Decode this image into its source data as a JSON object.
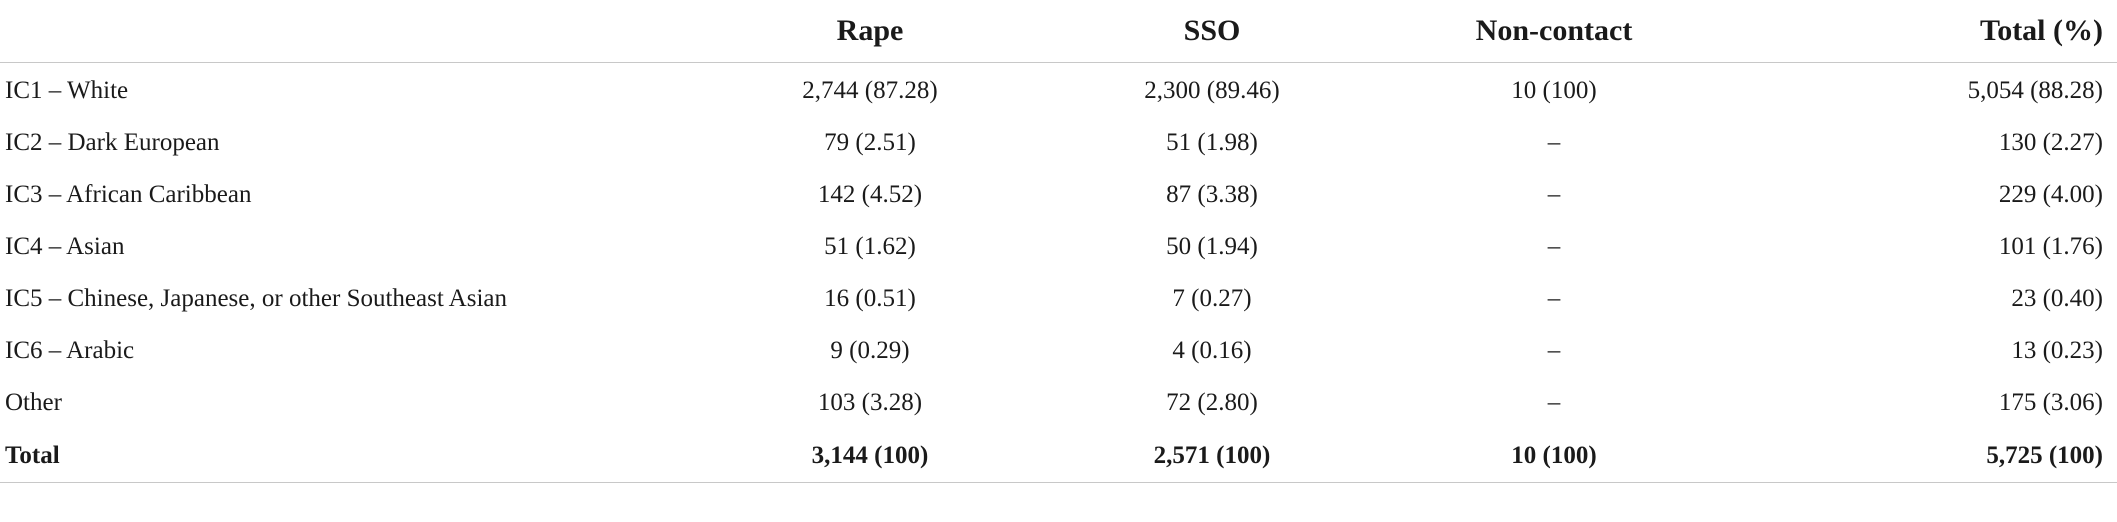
{
  "table": {
    "headers": {
      "label": "",
      "rape": "Rape",
      "sso": "SSO",
      "non_contact": "Non-contact",
      "total": "Total (%)"
    },
    "rows": [
      {
        "label": "IC1 – White",
        "rape": "2,744 (87.28)",
        "sso": "2,300 (89.46)",
        "non_contact": "10 (100)",
        "total": "5,054 (88.28)"
      },
      {
        "label": "IC2 – Dark European",
        "rape": "79 (2.51)",
        "sso": "51 (1.98)",
        "non_contact": "–",
        "total": "130 (2.27)"
      },
      {
        "label": "IC3 – African Caribbean",
        "rape": "142 (4.52)",
        "sso": "87 (3.38)",
        "non_contact": "–",
        "total": "229 (4.00)"
      },
      {
        "label": "IC4 – Asian",
        "rape": "51 (1.62)",
        "sso": "50 (1.94)",
        "non_contact": "–",
        "total": "101 (1.76)"
      },
      {
        "label": "IC5 – Chinese, Japanese, or other Southeast Asian",
        "rape": "16 (0.51)",
        "sso": "7 (0.27)",
        "non_contact": "–",
        "total": "23 (0.40)"
      },
      {
        "label": "IC6 – Arabic",
        "rape": "9 (0.29)",
        "sso": "4 (0.16)",
        "non_contact": "–",
        "total": "13 (0.23)"
      },
      {
        "label": "Other",
        "rape": "103 (3.28)",
        "sso": "72 (2.80)",
        "non_contact": "–",
        "total": "175 (3.06)"
      }
    ],
    "total_row": {
      "label": "Total",
      "rape": "3,144 (100)",
      "sso": "2,571 (100)",
      "non_contact": "10 (100)",
      "total": "5,725 (100)"
    }
  }
}
